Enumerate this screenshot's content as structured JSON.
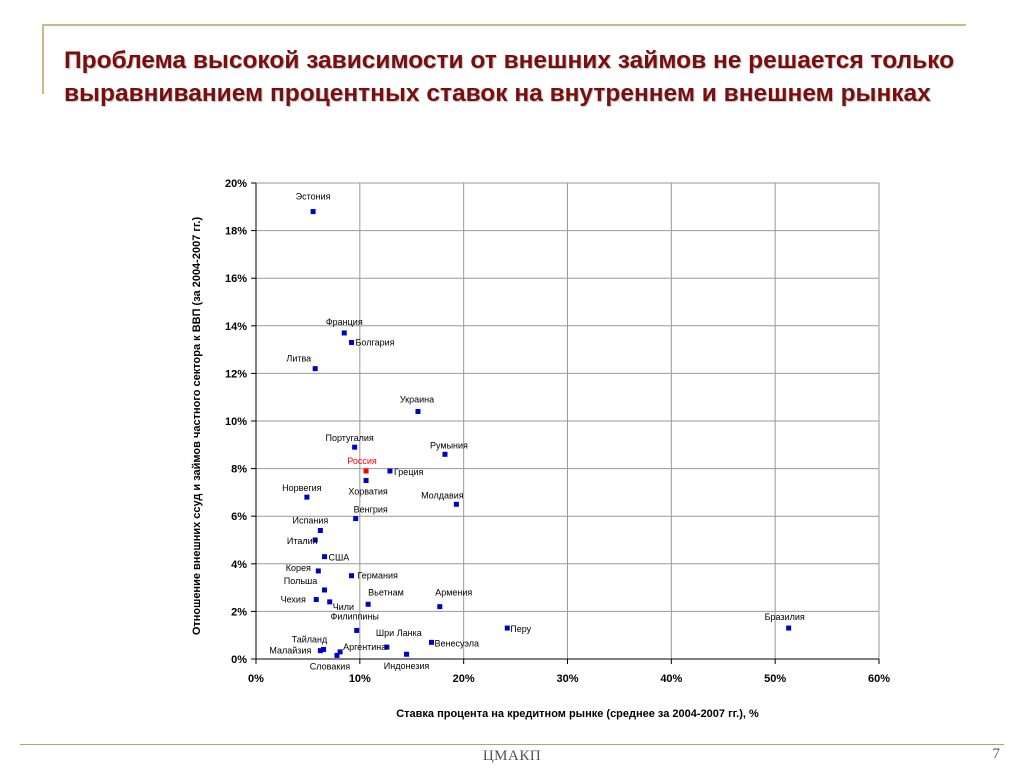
{
  "slide": {
    "title": "Проблема высокой зависимости от внешних займов не решается только выравниванием процентных ставок на внутреннем и внешнем рынках",
    "footer": "ЦМАКП",
    "page_number": "7"
  },
  "colors": {
    "title": "#7a0d0d",
    "accent": "#c9b98a",
    "series": "#0000cc",
    "highlight": "#ff0000"
  },
  "chart_data": {
    "type": "scatter",
    "xlabel": "Ставка процента на кредитном рынке (среднее за 2004-2007 гг.), %",
    "ylabel": "Отношение внешних ссуд и займов частного сектора к ВВП (за 2004-2007 гг.)",
    "xlim": [
      0,
      60
    ],
    "ylim": [
      0,
      20
    ],
    "x_ticks": [
      0,
      10,
      20,
      30,
      40,
      50,
      60
    ],
    "y_ticks": [
      0,
      2,
      4,
      6,
      8,
      10,
      12,
      14,
      16,
      18,
      20
    ],
    "x_tick_labels": [
      "0%",
      "10%",
      "20%",
      "30%",
      "40%",
      "50%",
      "60%"
    ],
    "y_tick_labels": [
      "0%",
      "2%",
      "4%",
      "6%",
      "8%",
      "10%",
      "12%",
      "14%",
      "16%",
      "18%",
      "20%"
    ],
    "grid": true,
    "points": [
      {
        "label": "Эстония",
        "x": 5.5,
        "y": 18.8
      },
      {
        "label": "Франция",
        "x": 8.5,
        "y": 13.7
      },
      {
        "label": "Болгария",
        "x": 9.2,
        "y": 13.3
      },
      {
        "label": "Литва",
        "x": 5.7,
        "y": 12.2
      },
      {
        "label": "Украина",
        "x": 15.6,
        "y": 10.4
      },
      {
        "label": "Португалия",
        "x": 9.5,
        "y": 8.9
      },
      {
        "label": "Румыния",
        "x": 18.2,
        "y": 8.6
      },
      {
        "label": "Россия",
        "x": 10.6,
        "y": 7.9,
        "highlight": true
      },
      {
        "label": "Греция",
        "x": 12.9,
        "y": 7.9
      },
      {
        "label": "Хорватия",
        "x": 10.6,
        "y": 7.5
      },
      {
        "label": "Норвегия",
        "x": 4.9,
        "y": 6.8
      },
      {
        "label": "Молдавия",
        "x": 19.3,
        "y": 6.5
      },
      {
        "label": "Венгрия",
        "x": 9.6,
        "y": 5.9
      },
      {
        "label": "Испания",
        "x": 6.2,
        "y": 5.4
      },
      {
        "label": "Италия",
        "x": 5.7,
        "y": 5.0
      },
      {
        "label": "США",
        "x": 6.6,
        "y": 4.3
      },
      {
        "label": "Корея",
        "x": 6.0,
        "y": 3.7
      },
      {
        "label": "Германия",
        "x": 9.2,
        "y": 3.5
      },
      {
        "label": "Польша",
        "x": 6.6,
        "y": 2.9
      },
      {
        "label": "Чехия",
        "x": 5.8,
        "y": 2.5
      },
      {
        "label": "Чили",
        "x": 7.1,
        "y": 2.4
      },
      {
        "label": "Вьетнам",
        "x": 10.8,
        "y": 2.3
      },
      {
        "label": "Армения",
        "x": 17.7,
        "y": 2.2
      },
      {
        "label": "Бразилия",
        "x": 51.3,
        "y": 1.3
      },
      {
        "label": "Перу",
        "x": 24.2,
        "y": 1.3
      },
      {
        "label": "Филиппины",
        "x": 9.7,
        "y": 1.2
      },
      {
        "label": "Шри Ланка",
        "x": 12.6,
        "y": 0.5
      },
      {
        "label": "Венесуэла",
        "x": 16.9,
        "y": 0.7
      },
      {
        "label": "Тайланд",
        "x": 6.5,
        "y": 0.4
      },
      {
        "label": "Аргентина",
        "x": 8.1,
        "y": 0.3
      },
      {
        "label": "Малайзия",
        "x": 6.2,
        "y": 0.35
      },
      {
        "label": "Словакия",
        "x": 7.8,
        "y": 0.15
      },
      {
        "label": "Индонезия",
        "x": 14.5,
        "y": 0.2
      }
    ]
  }
}
